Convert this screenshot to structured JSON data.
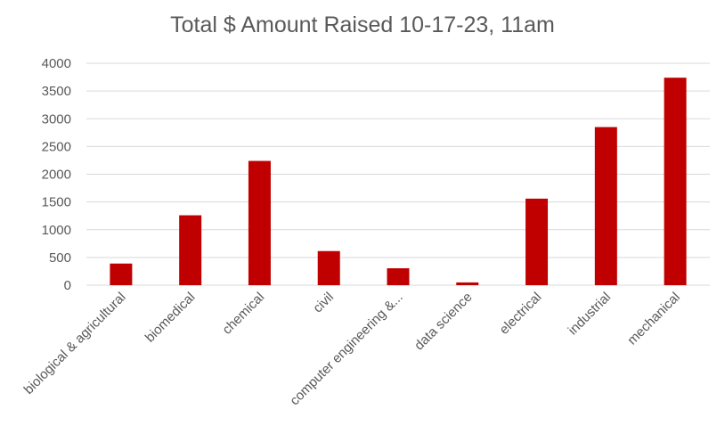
{
  "chart_data": {
    "type": "bar",
    "title": "Total $ Amount Raised 10-17-23, 11am",
    "categories": [
      "biological & agricultural",
      "biomedical",
      "chemical",
      "civil",
      "computer engineering &...",
      "data science",
      "electrical",
      "industrial",
      "mechanical"
    ],
    "values": [
      390,
      1260,
      2240,
      615,
      305,
      50,
      1560,
      2850,
      3740
    ],
    "ylim": [
      0,
      4000
    ],
    "yticks": [
      0,
      500,
      1000,
      1500,
      2000,
      2500,
      3000,
      3500,
      4000
    ],
    "xlabel": "",
    "ylabel": "",
    "grid": true,
    "legend": "none",
    "bar_color": "#C00000",
    "grid_color": "#D9D9D9",
    "text_color": "#595959"
  }
}
